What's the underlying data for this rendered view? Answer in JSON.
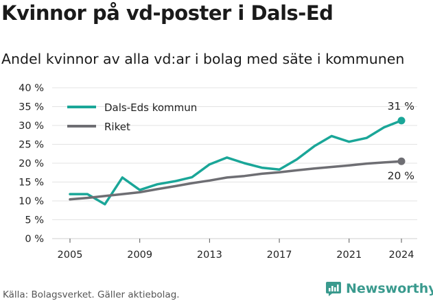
{
  "header": {
    "title": "Kvinnor på vd-poster i Dals-Ed",
    "subtitle": "Andel kvinnor av alla vd:ar i bolag med säte i kommunen"
  },
  "footer": {
    "source": "Källa: Bolagsverket. Gäller aktiebolag.",
    "brand": "Newsworthy",
    "brand_color": "#3a9a8e"
  },
  "chart_data": {
    "type": "line",
    "title": "",
    "xlabel": "",
    "ylabel": "",
    "ylim": [
      0,
      40
    ],
    "xlim": [
      2005,
      2024
    ],
    "grid": "horizontal",
    "legend_position": "top-left",
    "y_ticks": [
      0,
      5,
      10,
      15,
      20,
      25,
      30,
      35,
      40
    ],
    "y_tick_labels": [
      "0 %",
      "5 %",
      "10 %",
      "15 %",
      "20 %",
      "25 %",
      "30 %",
      "35 %",
      "40 %"
    ],
    "x_ticks": [
      "2005",
      "2009",
      "2013",
      "2017",
      "2021",
      "2024"
    ],
    "x": [
      2005,
      2006,
      2007,
      2008,
      2009,
      2010,
      2011,
      2012,
      2013,
      2014,
      2015,
      2016,
      2017,
      2018,
      2019,
      2020,
      2021,
      2022,
      2023,
      2024
    ],
    "series": [
      {
        "name": "Dals-Eds kommun",
        "color": "#1aa698",
        "values": [
          11.8,
          11.8,
          9.1,
          16.2,
          12.9,
          14.4,
          15.2,
          16.3,
          19.7,
          21.5,
          20.0,
          18.8,
          18.3,
          21.0,
          24.5,
          27.2,
          25.7,
          26.7,
          29.5,
          31.3
        ],
        "end_label": "31 %"
      },
      {
        "name": "Riket",
        "color": "#6e6e73",
        "values": [
          10.4,
          10.8,
          11.3,
          11.8,
          12.3,
          13.1,
          13.9,
          14.7,
          15.4,
          16.2,
          16.6,
          17.2,
          17.6,
          18.1,
          18.6,
          19.0,
          19.4,
          19.9,
          20.2,
          20.5
        ],
        "end_label": "20 %"
      }
    ]
  }
}
